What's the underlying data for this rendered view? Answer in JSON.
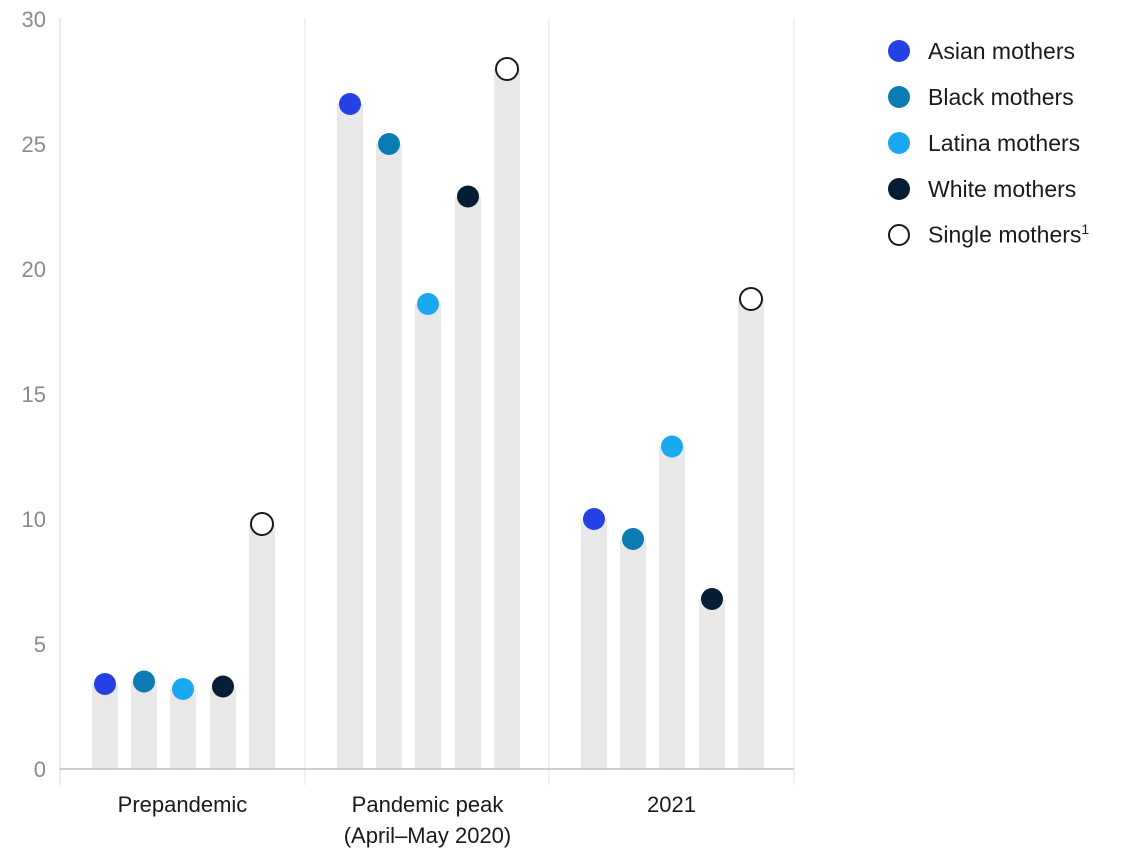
{
  "chart_data": {
    "type": "bar",
    "categories": [
      [
        "Prepandemic"
      ],
      [
        "Pandemic peak",
        "(April–May 2020)"
      ],
      [
        "2021"
      ]
    ],
    "series": [
      {
        "name": "Asian mothers",
        "color": "#2541e6",
        "hollow": false,
        "values": [
          3.4,
          26.6,
          10.0
        ]
      },
      {
        "name": "Black mothers",
        "color": "#0a7bb3",
        "hollow": false,
        "values": [
          3.5,
          25.0,
          9.2
        ]
      },
      {
        "name": "Latina mothers",
        "color": "#1aa8f0",
        "hollow": false,
        "values": [
          3.2,
          18.6,
          12.9
        ]
      },
      {
        "name": "White mothers",
        "color": "#061e33",
        "hollow": false,
        "values": [
          3.3,
          22.9,
          6.8
        ]
      },
      {
        "name": "Single mothers",
        "footnote": "1",
        "color": "#ffffff",
        "hollow": true,
        "values": [
          9.8,
          28.0,
          18.8
        ]
      }
    ],
    "y_ticks": [
      "0",
      "5",
      "10",
      "15",
      "20",
      "25",
      "30"
    ],
    "ylim": [
      0,
      30
    ],
    "bar_color": "#e8e8e8",
    "grid": false
  }
}
